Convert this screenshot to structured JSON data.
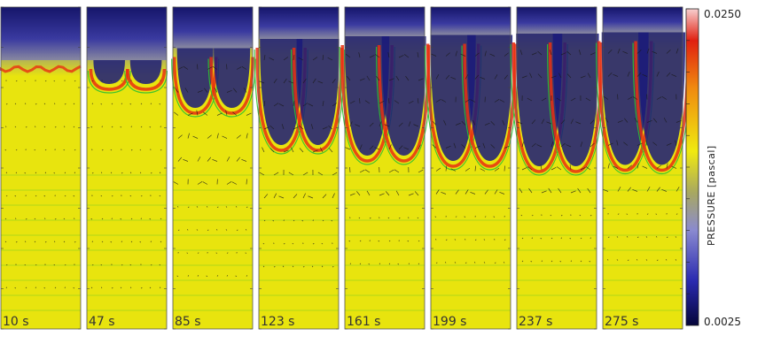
{
  "figure": {
    "panels": [
      {
        "time_label": "10 s",
        "stage": 0.05
      },
      {
        "time_label": "47 s",
        "stage": 0.18
      },
      {
        "time_label": "85 s",
        "stage": 0.45
      },
      {
        "time_label": "123 s",
        "stage": 0.8
      },
      {
        "time_label": "161 s",
        "stage": 0.9
      },
      {
        "time_label": "199 s",
        "stage": 0.95
      },
      {
        "time_label": "237 s",
        "stage": 1.0
      },
      {
        "time_label": "275 s",
        "stage": 1.05
      }
    ],
    "colorbar": {
      "title": "PRESSURE [pascal]",
      "max_label": "0.0250",
      "min_label": "0.0025",
      "stops": [
        "#05053a",
        "#2a2ab0",
        "#8a8ad0",
        "#a8a860",
        "#f0ea10",
        "#f08a10",
        "#e02010",
        "#f8d0d0"
      ]
    },
    "colors": {
      "background_field": "#e8e40e",
      "low_pressure": "#1a1a7a",
      "high_pressure": "#e83010",
      "contour": "#30c030",
      "vector": "#1a1a1a"
    }
  }
}
